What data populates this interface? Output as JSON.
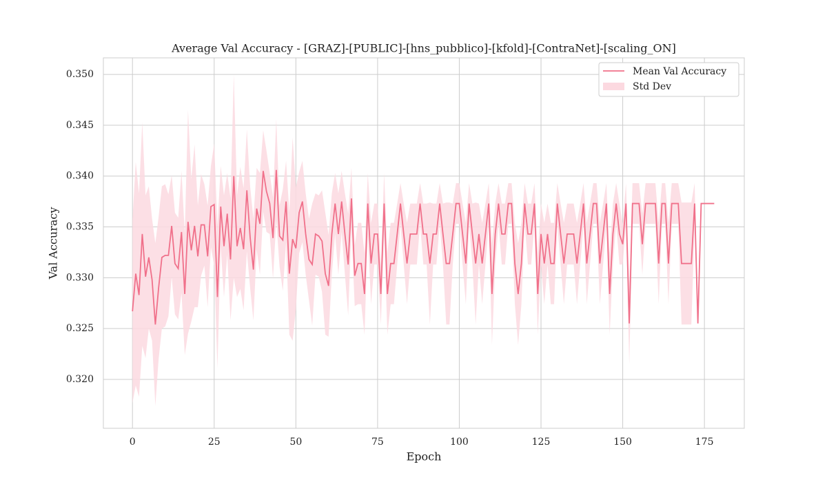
{
  "chart_data": {
    "type": "line",
    "title": "Average Val Accuracy - [GRAZ]-[PUBLIC]-[hns_pubblico]-[kfold]-[ContraNet]-[scaling_ON]",
    "xlabel": "Epoch",
    "ylabel": "Val Accuracy",
    "x": [
      0,
      1,
      2,
      3,
      4,
      5,
      6,
      7,
      8,
      9,
      10,
      11,
      12,
      13,
      14,
      15,
      16,
      17,
      18,
      19,
      20,
      21,
      22,
      23,
      24,
      25,
      26,
      27,
      28,
      29,
      30,
      31,
      32,
      33,
      34,
      35,
      36,
      37,
      38,
      39,
      40,
      41,
      42,
      43,
      44,
      45,
      46,
      47,
      48,
      49,
      50,
      51,
      52,
      53,
      54,
      55,
      56,
      57,
      58,
      59,
      60,
      61,
      62,
      63,
      64,
      65,
      66,
      67,
      68,
      69,
      70,
      71,
      72,
      73,
      74,
      75,
      76,
      77,
      78,
      79,
      80,
      81,
      82,
      83,
      84,
      85,
      86,
      87,
      88,
      89,
      90,
      91,
      92,
      93,
      94,
      95,
      96,
      97,
      98,
      99,
      100,
      101,
      102,
      103,
      104,
      105,
      106,
      107,
      108,
      109,
      110,
      111,
      112,
      113,
      114,
      115,
      116,
      117,
      118,
      119,
      120,
      121,
      122,
      123,
      124,
      125,
      126,
      127,
      128,
      129,
      130,
      131,
      132,
      133,
      134,
      135,
      136,
      137,
      138,
      139,
      140,
      141,
      142,
      143,
      144,
      145,
      146,
      147,
      148,
      149,
      150,
      151,
      152,
      153,
      154,
      155,
      156,
      157,
      158,
      159,
      160,
      161,
      162,
      163,
      164,
      165,
      166,
      167,
      168,
      169,
      170,
      171,
      172,
      173,
      174,
      175,
      176,
      177,
      178
    ],
    "series": [
      {
        "name": "Mean Val Accuracy",
        "color": "#f0708a",
        "values": [
          0.3267,
          0.3304,
          0.3283,
          0.3343,
          0.3301,
          0.332,
          0.3298,
          0.3254,
          0.329,
          0.332,
          0.3322,
          0.3322,
          0.3351,
          0.3314,
          0.3309,
          0.3345,
          0.3284,
          0.3355,
          0.3327,
          0.3351,
          0.3321,
          0.3352,
          0.3352,
          0.3321,
          0.337,
          0.3372,
          0.3281,
          0.337,
          0.3331,
          0.3363,
          0.3318,
          0.34,
          0.3331,
          0.3349,
          0.3328,
          0.3386,
          0.334,
          0.3308,
          0.3368,
          0.3353,
          0.3405,
          0.3385,
          0.3373,
          0.3339,
          0.3406,
          0.3341,
          0.3337,
          0.3375,
          0.3304,
          0.3338,
          0.3329,
          0.3364,
          0.3375,
          0.3343,
          0.3318,
          0.3313,
          0.3343,
          0.3341,
          0.3336,
          0.3304,
          0.3292,
          0.3343,
          0.3373,
          0.3343,
          0.3375,
          0.3343,
          0.3313,
          0.3378,
          0.3302,
          0.3314,
          0.3314,
          0.3284,
          0.3373,
          0.3314,
          0.3343,
          0.3343,
          0.3284,
          0.3373,
          0.3284,
          0.3314,
          0.3314,
          0.3343,
          0.3373,
          0.3343,
          0.3314,
          0.3343,
          0.3343,
          0.3343,
          0.3373,
          0.3343,
          0.3343,
          0.3314,
          0.3343,
          0.3343,
          0.3373,
          0.3343,
          0.3314,
          0.3314,
          0.3343,
          0.3373,
          0.3373,
          0.3343,
          0.3314,
          0.3373,
          0.3343,
          0.3314,
          0.3343,
          0.3314,
          0.3343,
          0.3373,
          0.3284,
          0.3343,
          0.3373,
          0.3343,
          0.3343,
          0.3373,
          0.3373,
          0.3314,
          0.3284,
          0.3314,
          0.3373,
          0.3343,
          0.3343,
          0.3373,
          0.3284,
          0.3343,
          0.3314,
          0.3343,
          0.3314,
          0.3314,
          0.3373,
          0.3343,
          0.3314,
          0.3343,
          0.3343,
          0.3343,
          0.3314,
          0.3343,
          0.3373,
          0.3314,
          0.3343,
          0.3373,
          0.3373,
          0.3314,
          0.3343,
          0.3373,
          0.3284,
          0.3343,
          0.3373,
          0.3343,
          0.3333,
          0.3373,
          0.3255,
          0.3373,
          0.3373,
          0.3373,
          0.3333,
          0.3373,
          0.3373,
          0.3373,
          0.3373,
          0.3314,
          0.3373,
          0.3373,
          0.3314,
          0.3373,
          0.3373,
          0.3373,
          0.3314,
          0.3314,
          0.3314,
          0.3314,
          0.3373,
          0.3255,
          0.3373,
          0.3373,
          0.3373,
          0.3373,
          0.3373
        ]
      },
      {
        "name": "Std Dev",
        "color": "#fcd9e0",
        "values": [
          0.009,
          0.011,
          0.01,
          0.011,
          0.008,
          0.007,
          0.006,
          0.008,
          0.007,
          0.007,
          0.007,
          0.006,
          0.005,
          0.005,
          0.005,
          0.006,
          0.006,
          0.011,
          0.007,
          0.008,
          0.005,
          0.005,
          0.004,
          0.005,
          0.004,
          0.006,
          0.007,
          0.004,
          0.005,
          0.004,
          0.006,
          0.01,
          0.005,
          0.006,
          0.006,
          0.006,
          0.005,
          0.005,
          0.004,
          0.005,
          0.004,
          0.004,
          0.003,
          0.004,
          0.005,
          0.003,
          0.005,
          0.004,
          0.006,
          0.01,
          0.006,
          0.004,
          0.004,
          0.004,
          0.004,
          0.006,
          0.004,
          0.004,
          0.005,
          0.006,
          0.005,
          0.004,
          0.003,
          0.004,
          0.003,
          0.004,
          0.005,
          0.003,
          0.003,
          0.004,
          0.004,
          0.004,
          0.003,
          0.004,
          0.003,
          0.003,
          0.003,
          0.003,
          0.004,
          0.004,
          0.004,
          0.003,
          0.002,
          0.003,
          0.004,
          0.003,
          0.003,
          0.003,
          0.002,
          0.003,
          0.003,
          0.006,
          0.003,
          0.003,
          0.002,
          0.003,
          0.006,
          0.006,
          0.003,
          0.002,
          0.002,
          0.003,
          0.004,
          0.002,
          0.003,
          0.006,
          0.003,
          0.004,
          0.003,
          0.002,
          0.005,
          0.003,
          0.002,
          0.003,
          0.003,
          0.002,
          0.002,
          0.004,
          0.005,
          0.004,
          0.002,
          0.003,
          0.003,
          0.002,
          0.004,
          0.003,
          0.004,
          0.003,
          0.004,
          0.004,
          0.002,
          0.003,
          0.004,
          0.003,
          0.003,
          0.003,
          0.004,
          0.003,
          0.002,
          0.004,
          0.003,
          0.002,
          0.002,
          0.004,
          0.003,
          0.002,
          0.004,
          0.003,
          0.002,
          0.003,
          0.002,
          0.002,
          0.004,
          0.002,
          0.002,
          0.002,
          0.003,
          0.002,
          0.002,
          0.002,
          0.002,
          0.004,
          0.002,
          0.002,
          0.004,
          0.002,
          0.002,
          0.002,
          0.006,
          0.006,
          0.006,
          0.006,
          0.002,
          0,
          0,
          0,
          0,
          0,
          0
        ]
      }
    ],
    "xlim": [
      -8.9,
      187.2
    ],
    "xticks": [
      0,
      25,
      50,
      75,
      100,
      125,
      150,
      175
    ],
    "ylim": [
      0.31519,
      0.35163
    ],
    "yticks": [
      {
        "value": 0.32,
        "label": "0.320"
      },
      {
        "value": 0.325,
        "label": "0.325"
      },
      {
        "value": 0.33,
        "label": "0.330"
      },
      {
        "value": 0.335,
        "label": "0.335"
      },
      {
        "value": 0.34,
        "label": "0.340"
      },
      {
        "value": 0.345,
        "label": "0.345"
      },
      {
        "value": 0.35,
        "label": "0.350"
      }
    ],
    "grid": true,
    "legend": "upper right"
  }
}
